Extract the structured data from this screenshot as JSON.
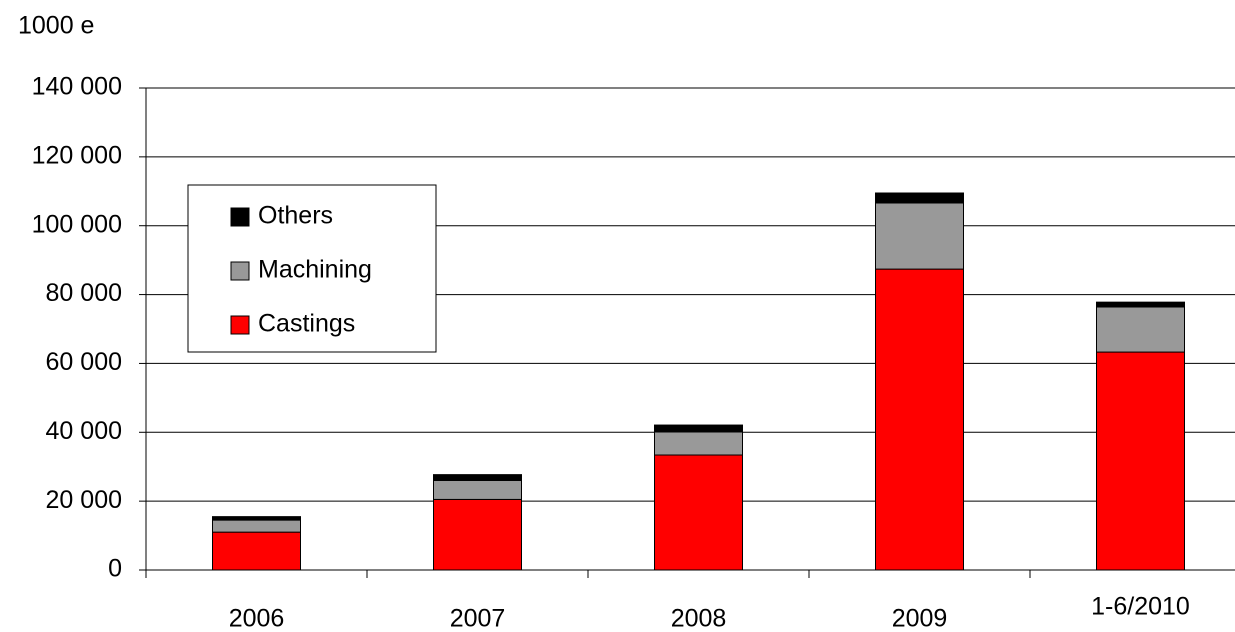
{
  "chart_data": {
    "type": "stacked_bar",
    "y_axis_label": "1000 e",
    "categories": [
      "2006",
      "2007",
      "2008",
      "2009",
      "1-6/2010"
    ],
    "series": [
      {
        "name": "Castings",
        "color": "#ff0000",
        "values": [
          11000,
          20500,
          33400,
          87400,
          63300
        ]
      },
      {
        "name": "Machining",
        "color": "#999999",
        "values": [
          3500,
          5500,
          6700,
          19200,
          13100
        ]
      },
      {
        "name": "Others",
        "color": "#000000",
        "values": [
          1000,
          1700,
          2000,
          2900,
          1400
        ]
      }
    ],
    "ylim": [
      0,
      140000
    ],
    "yticks": [
      0,
      {
        "value": 20000,
        "label": "20 000"
      },
      {
        "value": 40000,
        "label": "40 000"
      },
      {
        "value": 60000,
        "label": "60 000"
      },
      {
        "value": 80000,
        "label": "80 000"
      },
      {
        "value": 100000,
        "label": "100 000"
      },
      {
        "value": 120000,
        "label": "120 000"
      },
      {
        "value": 140000,
        "label": "140 000"
      }
    ],
    "grid": true
  }
}
